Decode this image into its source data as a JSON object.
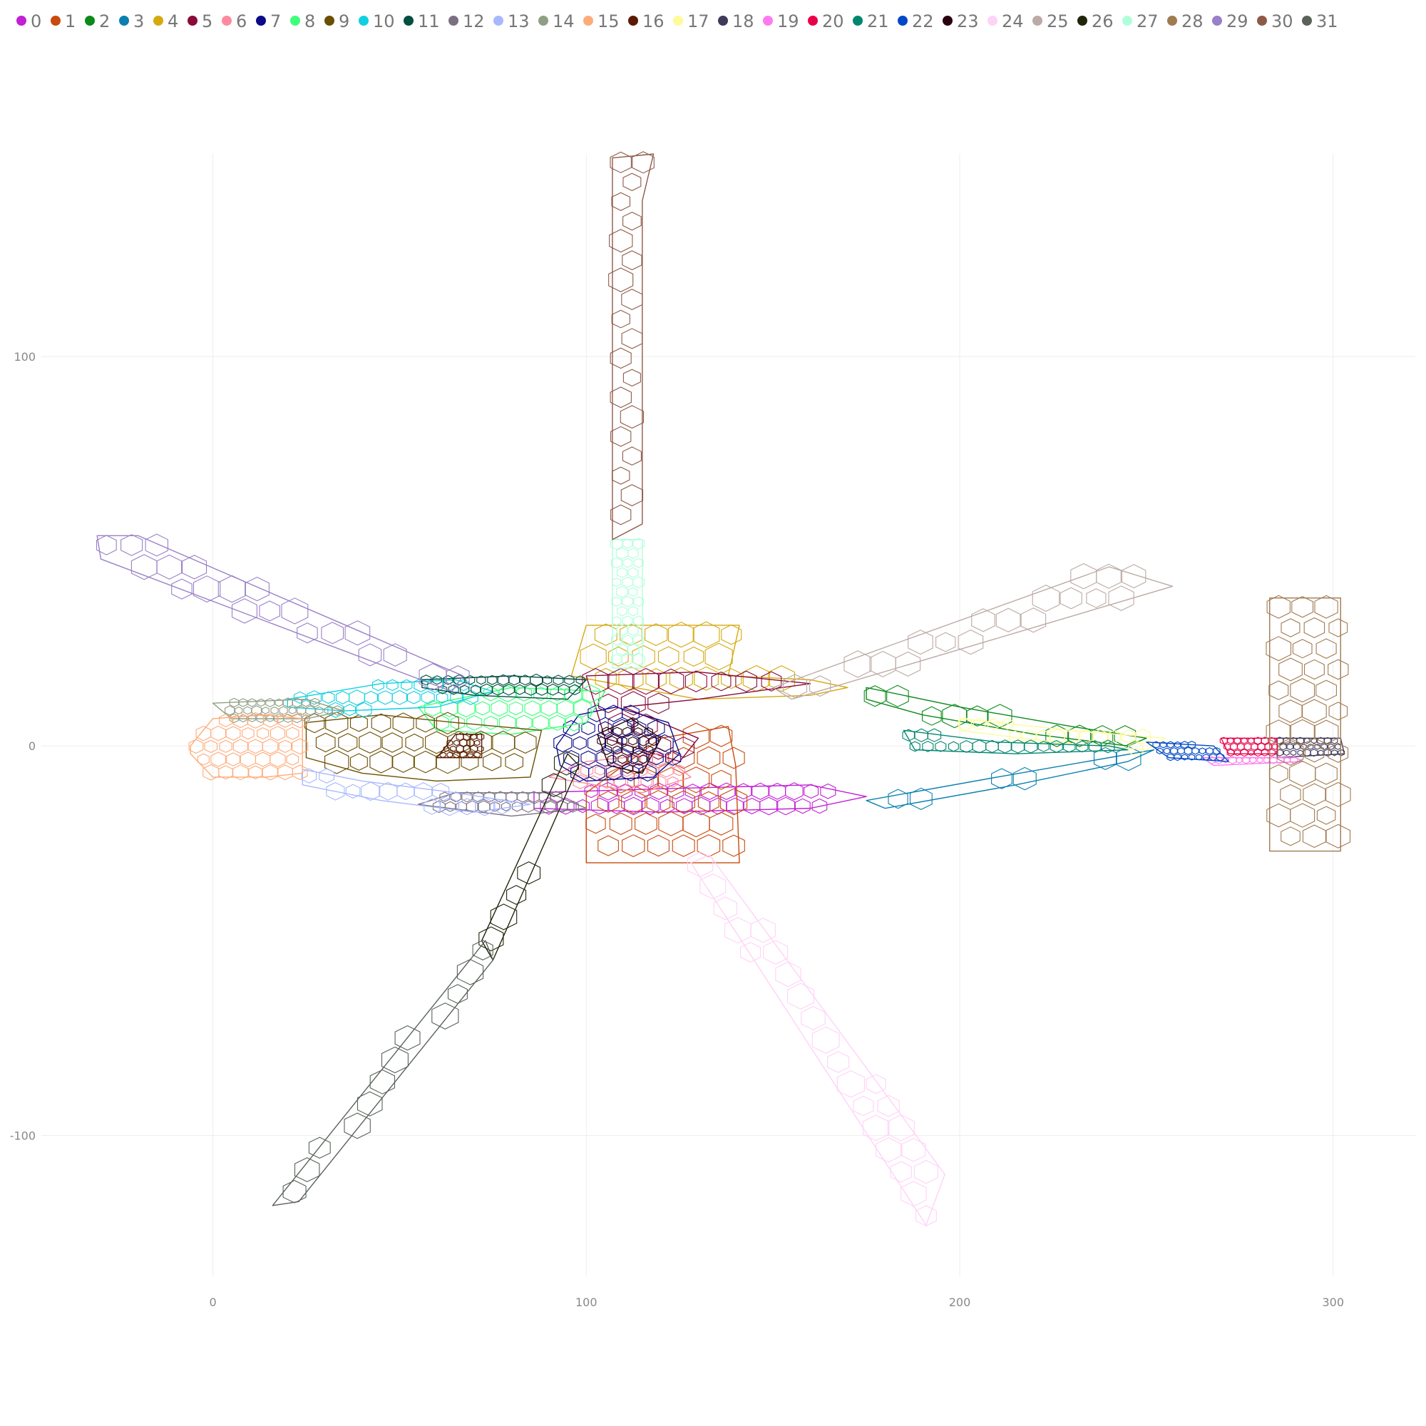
{
  "chart_data": {
    "type": "scatter",
    "title": "",
    "xlabel": "",
    "ylabel": "",
    "xlim": [
      -57,
      322
    ],
    "ylim": [
      -138,
      165
    ],
    "x_ticks": [
      0,
      100,
      200,
      300
    ],
    "y_ticks": [
      -100,
      0,
      100
    ],
    "grid": true,
    "legend_position": "top",
    "series": [
      {
        "name": "0",
        "color": "#c21fd6",
        "outline": [
          [
            86,
            -16
          ],
          [
            120,
            -17
          ],
          [
            160,
            -16
          ],
          [
            175,
            -13
          ],
          [
            160,
            -10
          ],
          [
            120,
            -11
          ],
          [
            86,
            -12
          ]
        ]
      },
      {
        "name": "1",
        "color": "#c84a0c",
        "outline": [
          [
            100,
            -30
          ],
          [
            141,
            -30
          ],
          [
            140,
            -5
          ],
          [
            138,
            5
          ],
          [
            120,
            2
          ],
          [
            100,
            -12
          ]
        ]
      },
      {
        "name": "2",
        "color": "#0b8a1a",
        "outline": [
          [
            175,
            15
          ],
          [
            200,
            10
          ],
          [
            230,
            5
          ],
          [
            250,
            2
          ],
          [
            245,
            0
          ],
          [
            220,
            3
          ],
          [
            190,
            8
          ],
          [
            175,
            12
          ]
        ]
      },
      {
        "name": "3",
        "color": "#0a7fb0",
        "outline": [
          [
            175,
            -14
          ],
          [
            210,
            -8
          ],
          [
            240,
            -3
          ],
          [
            252,
            -1
          ],
          [
            245,
            -4
          ],
          [
            215,
            -10
          ],
          [
            180,
            -16
          ]
        ]
      },
      {
        "name": "4",
        "color": "#d6a910",
        "outline": [
          [
            100,
            31
          ],
          [
            141,
            31
          ],
          [
            138,
            18
          ],
          [
            160,
            17
          ],
          [
            170,
            15
          ],
          [
            160,
            13
          ],
          [
            130,
            12
          ],
          [
            96,
            18
          ]
        ]
      },
      {
        "name": "5",
        "color": "#8a0a3a",
        "outline": [
          [
            100,
            18
          ],
          [
            130,
            19
          ],
          [
            160,
            16
          ],
          [
            130,
            12
          ],
          [
            110,
            10
          ],
          [
            130,
            2
          ],
          [
            125,
            -4
          ],
          [
            105,
            2
          ]
        ]
      },
      {
        "name": "6",
        "color": "#ff8a9e",
        "outline": [
          [
            90,
            -8
          ],
          [
            115,
            -12
          ],
          [
            128,
            -8
          ],
          [
            120,
            -2
          ],
          [
            100,
            -4
          ]
        ]
      },
      {
        "name": "7",
        "color": "#0a0a8a",
        "outline": [
          [
            92,
            0
          ],
          [
            98,
            8
          ],
          [
            108,
            10
          ],
          [
            122,
            6
          ],
          [
            125,
            -2
          ],
          [
            118,
            -8
          ],
          [
            100,
            -9
          ],
          [
            93,
            -5
          ]
        ]
      },
      {
        "name": "8",
        "color": "#3dff7a",
        "outline": [
          [
            55,
            10
          ],
          [
            80,
            15
          ],
          [
            105,
            14
          ],
          [
            100,
            6
          ],
          [
            80,
            3
          ],
          [
            60,
            4
          ]
        ]
      },
      {
        "name": "9",
        "color": "#6b4f00",
        "outline": [
          [
            25,
            6
          ],
          [
            45,
            8
          ],
          [
            65,
            6
          ],
          [
            88,
            4
          ],
          [
            85,
            -8
          ],
          [
            60,
            -9
          ],
          [
            40,
            -7
          ],
          [
            25,
            -3
          ]
        ]
      },
      {
        "name": "10",
        "color": "#10d0e0",
        "outline": [
          [
            20,
            12
          ],
          [
            45,
            16
          ],
          [
            65,
            17
          ],
          [
            75,
            14
          ],
          [
            60,
            10
          ],
          [
            35,
            9
          ],
          [
            20,
            10
          ]
        ]
      },
      {
        "name": "11",
        "color": "#004f40",
        "outline": [
          [
            56,
            17
          ],
          [
            80,
            18
          ],
          [
            100,
            17
          ],
          [
            95,
            12
          ],
          [
            70,
            13
          ],
          [
            56,
            15
          ]
        ]
      },
      {
        "name": "12",
        "color": "#7a7082",
        "outline": [
          [
            55,
            -15
          ],
          [
            80,
            -18
          ],
          [
            100,
            -16
          ],
          [
            90,
            -12
          ],
          [
            65,
            -12
          ]
        ]
      },
      {
        "name": "13",
        "color": "#a8b8ff",
        "outline": [
          [
            24,
            -10
          ],
          [
            45,
            -14
          ],
          [
            70,
            -17
          ],
          [
            85,
            -15
          ],
          [
            65,
            -12
          ],
          [
            40,
            -9
          ],
          [
            24,
            -6
          ]
        ]
      },
      {
        "name": "14",
        "color": "#8f9f84",
        "outline": [
          [
            0,
            11
          ],
          [
            25,
            12
          ],
          [
            35,
            9
          ],
          [
            25,
            7
          ],
          [
            5,
            7
          ]
        ]
      },
      {
        "name": "15",
        "color": "#ffab7a",
        "outline": [
          [
            -6,
            0
          ],
          [
            0,
            7
          ],
          [
            14,
            8
          ],
          [
            24,
            7
          ],
          [
            24,
            -7
          ],
          [
            14,
            -8
          ],
          [
            0,
            -8
          ],
          [
            -6,
            -2
          ]
        ]
      },
      {
        "name": "16",
        "color": "#5a1a00",
        "outline": [
          [
            60,
            -3
          ],
          [
            65,
            3
          ],
          [
            72,
            3
          ],
          [
            72,
            -3
          ]
        ]
      },
      {
        "name": "17",
        "color": "#fdfb9a",
        "outline": [
          [
            200,
            7
          ],
          [
            230,
            4
          ],
          [
            255,
            2
          ],
          [
            250,
            -1
          ],
          [
            225,
            1
          ],
          [
            200,
            4
          ]
        ]
      },
      {
        "name": "18",
        "color": "#3f3a5a",
        "outline": [
          [
            285,
            2
          ],
          [
            302,
            2
          ],
          [
            303,
            -2
          ],
          [
            285,
            -3
          ]
        ]
      },
      {
        "name": "19",
        "color": "#ff7af0",
        "outline": [
          [
            265,
            -3
          ],
          [
            290,
            -3
          ],
          [
            292,
            -4
          ],
          [
            268,
            -5
          ]
        ]
      },
      {
        "name": "20",
        "color": "#e8004a",
        "outline": [
          [
            270,
            2
          ],
          [
            285,
            2
          ],
          [
            285,
            -2
          ],
          [
            272,
            -2
          ]
        ]
      },
      {
        "name": "21",
        "color": "#00866f",
        "outline": [
          [
            185,
            4
          ],
          [
            210,
            1
          ],
          [
            240,
            0
          ],
          [
            245,
            -1
          ],
          [
            215,
            -2
          ],
          [
            188,
            -1
          ]
        ]
      },
      {
        "name": "22",
        "color": "#0048c8",
        "outline": [
          [
            250,
            1
          ],
          [
            268,
            0
          ],
          [
            272,
            -4
          ],
          [
            256,
            -3
          ]
        ]
      },
      {
        "name": "23",
        "color": "#2a0010",
        "outline": [
          [
            103,
            3
          ],
          [
            112,
            7
          ],
          [
            120,
            2
          ],
          [
            115,
            -7
          ],
          [
            106,
            -5
          ]
        ]
      },
      {
        "name": "24",
        "color": "#ffd2f7",
        "outline": [
          [
            133,
            -28
          ],
          [
            196,
            -110
          ],
          [
            191,
            -123
          ],
          [
            128,
            -30
          ]
        ]
      },
      {
        "name": "25",
        "color": "#bcaaa4",
        "outline": [
          [
            150,
            15
          ],
          [
            240,
            46
          ],
          [
            257,
            41
          ],
          [
            155,
            12
          ]
        ]
      },
      {
        "name": "26",
        "color": "#22240a",
        "outline": [
          [
            98,
            -5
          ],
          [
            75,
            -55
          ],
          [
            72,
            -50
          ],
          [
            95,
            -2
          ]
        ]
      },
      {
        "name": "27",
        "color": "#b0ffd9",
        "outline": [
          [
            107,
            53
          ],
          [
            115,
            53
          ],
          [
            115,
            20
          ],
          [
            107,
            20
          ]
        ]
      },
      {
        "name": "28",
        "color": "#a07a50",
        "outline": [
          [
            283,
            38
          ],
          [
            302,
            38
          ],
          [
            302,
            -27
          ],
          [
            283,
            -27
          ]
        ]
      },
      {
        "name": "29",
        "color": "#9a80c8",
        "outline": [
          [
            -31,
            54
          ],
          [
            -20,
            54
          ],
          [
            67,
            18
          ],
          [
            64,
            14
          ],
          [
            -30,
            48
          ]
        ]
      },
      {
        "name": "30",
        "color": "#8e5a48",
        "outline": [
          [
            107,
            151
          ],
          [
            118,
            152
          ],
          [
            115,
            140
          ],
          [
            115,
            57
          ],
          [
            107,
            53
          ]
        ]
      },
      {
        "name": "31",
        "color": "#5a625a",
        "outline": [
          [
            75,
            -55
          ],
          [
            23,
            -117
          ],
          [
            16,
            -118
          ],
          [
            73,
            -50
          ]
        ]
      }
    ]
  }
}
